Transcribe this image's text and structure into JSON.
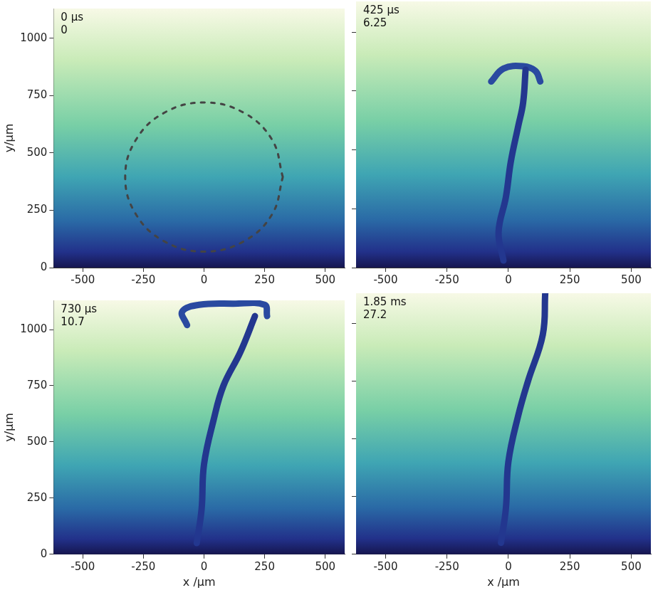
{
  "chart_data": [
    {
      "type": "scatter",
      "annotations": [
        "0 µs",
        "0"
      ],
      "xlim": [
        -620,
        580
      ],
      "ylim": [
        0,
        1130
      ],
      "xticks": [
        -500,
        -250,
        0,
        250,
        500
      ],
      "yticks": [
        0,
        250,
        500,
        750,
        1000
      ],
      "y_label": "y/µm",
      "tick_labels": true,
      "grid": false,
      "series": [
        {
          "x": [
            325,
            281,
            163,
            0,
            -163,
            -281,
            -325,
            -281,
            -163,
            0,
            163,
            281,
            325
          ],
          "values": [
            395,
            557,
            676,
            720,
            676,
            557,
            395,
            233,
            114,
            70,
            114,
            233,
            395
          ],
          "color": "#444444",
          "line_style": "dashed",
          "marker": "none"
        }
      ]
    },
    {
      "type": "scatter",
      "annotations": [
        "425 µs",
        "6.25"
      ],
      "xlim": [
        -620,
        580
      ],
      "ylim": [
        0,
        1130
      ],
      "xticks": [
        -500,
        -250,
        0,
        250,
        500
      ],
      "yticks": [
        0,
        250,
        500,
        750,
        1000
      ],
      "tick_labels": "x",
      "grid": false,
      "series": [
        {
          "x": [
            -20,
            -40,
            -10,
            10,
            40,
            60,
            70
          ],
          "values": [
            30,
            150,
            300,
            450,
            600,
            700,
            840
          ],
          "color": "#23378f",
          "line_style": "solid",
          "marker": "none"
        },
        {
          "x": [
            -70,
            -20,
            60,
            110,
            130
          ],
          "values": [
            790,
            845,
            855,
            835,
            790
          ],
          "color": "#2a4aa0",
          "line_style": "solid",
          "marker": "none"
        }
      ]
    },
    {
      "type": "scatter",
      "annotations": [
        "730 µs",
        "10.7"
      ],
      "xlim": [
        -620,
        580
      ],
      "ylim": [
        0,
        1130
      ],
      "xticks": [
        -500,
        -250,
        0,
        250,
        500
      ],
      "yticks": [
        0,
        250,
        500,
        750,
        1000
      ],
      "x_label": "x /µm",
      "y_label": "y/µm",
      "tick_labels": true,
      "grid": false,
      "series": [
        {
          "x": [
            -30,
            -10,
            0,
            40,
            80,
            150,
            210
          ],
          "values": [
            50,
            200,
            400,
            600,
            750,
            900,
            1060
          ],
          "color": "#23378f",
          "line_style": "solid",
          "marker": "none"
        },
        {
          "x": [
            -70,
            -90,
            -20,
            120,
            250,
            260
          ],
          "values": [
            1020,
            1080,
            1110,
            1115,
            1110,
            1060
          ],
          "color": "#2a4aa0",
          "line_style": "solid",
          "marker": "none"
        }
      ]
    },
    {
      "type": "scatter",
      "annotations": [
        "1.85 ms",
        "27.2"
      ],
      "xlim": [
        -620,
        580
      ],
      "ylim": [
        0,
        1130
      ],
      "xticks": [
        -500,
        -250,
        0,
        250,
        500
      ],
      "yticks": [
        0,
        250,
        500,
        750,
        1000
      ],
      "x_label": "x /µm",
      "tick_labels": "x",
      "grid": false,
      "series": [
        {
          "x": [
            -30,
            -10,
            0,
            40,
            80,
            140,
            150
          ],
          "values": [
            50,
            200,
            400,
            600,
            750,
            950,
            1130
          ],
          "color": "#23378f",
          "line_style": "solid",
          "marker": "none"
        }
      ]
    }
  ]
}
